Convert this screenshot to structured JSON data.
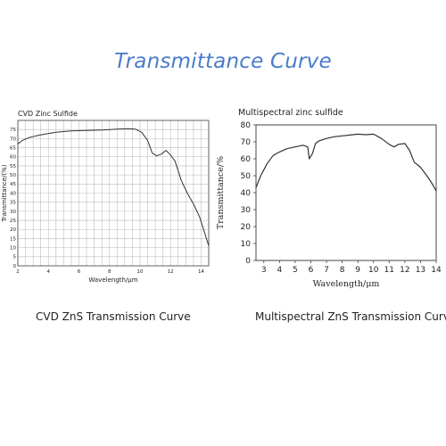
{
  "page_title": "Transmittance Curve",
  "colors": {
    "title": "#4a7cc9",
    "curve": "#333333",
    "grid": "#bdbdbd",
    "axis": "#444444"
  },
  "captions": {
    "left": "CVD ZnS Transmission Curve",
    "right": "Multispectral ZnS Transmission Curve"
  },
  "chart_data": [
    {
      "type": "line",
      "title": "CVD Zinc Sulfide",
      "xlabel": "Wavelength/μm",
      "ylabel": "Transmittance/(%)",
      "xlim": [
        2,
        14.5
      ],
      "ylim": [
        0,
        80
      ],
      "grid": true,
      "xticks": [
        2,
        4,
        6,
        8,
        10,
        12,
        14
      ],
      "yticks": [
        0,
        5,
        10,
        15,
        20,
        25,
        30,
        35,
        40,
        45,
        50,
        55,
        60,
        65,
        70,
        75
      ],
      "series": [
        {
          "x": [
            2.0,
            2.3,
            2.7,
            3.2,
            3.8,
            4.5,
            5.5,
            6.5,
            7.5,
            8.5,
            9.2,
            9.7,
            10.1,
            10.5,
            10.8,
            11.1,
            11.4,
            11.7,
            12.0,
            12.3,
            12.7,
            13.1,
            13.5,
            13.9,
            14.2,
            14.5
          ],
          "y": [
            67,
            69,
            70.5,
            71.5,
            72.5,
            73.5,
            74.2,
            74.5,
            74.7,
            75.2,
            75.5,
            75.2,
            73.5,
            69,
            62,
            60.5,
            61.5,
            63.5,
            61,
            57.5,
            47,
            40,
            34,
            27,
            19,
            11
          ]
        }
      ]
    },
    {
      "type": "line",
      "title": "Multispectral zinc sulfide",
      "xlabel": "Wavelength/μm",
      "ylabel": "Transmittance/%",
      "xlim": [
        2.5,
        14
      ],
      "ylim": [
        0,
        80
      ],
      "grid": false,
      "xticks": [
        3,
        4,
        5,
        6,
        7,
        8,
        9,
        10,
        11,
        12,
        13,
        14
      ],
      "yticks": [
        0,
        10,
        20,
        30,
        40,
        50,
        60,
        70,
        80
      ],
      "series": [
        {
          "x": [
            2.5,
            2.8,
            3.2,
            3.6,
            4.0,
            4.5,
            5.0,
            5.5,
            5.8,
            5.9,
            6.1,
            6.3,
            6.5,
            7.0,
            7.5,
            8.0,
            8.5,
            9.0,
            9.5,
            10.0,
            10.5,
            11.0,
            11.3,
            11.6,
            12.0,
            12.3,
            12.6,
            13.0,
            13.4,
            13.7,
            14.0
          ],
          "y": [
            43,
            50,
            57,
            62,
            64,
            66,
            67,
            68,
            67,
            60,
            63,
            69,
            70.5,
            72,
            73,
            73.5,
            74,
            74.5,
            74.2,
            74.5,
            72,
            68.5,
            67,
            68.5,
            69,
            65,
            58,
            55,
            50,
            46,
            41
          ]
        }
      ]
    }
  ]
}
